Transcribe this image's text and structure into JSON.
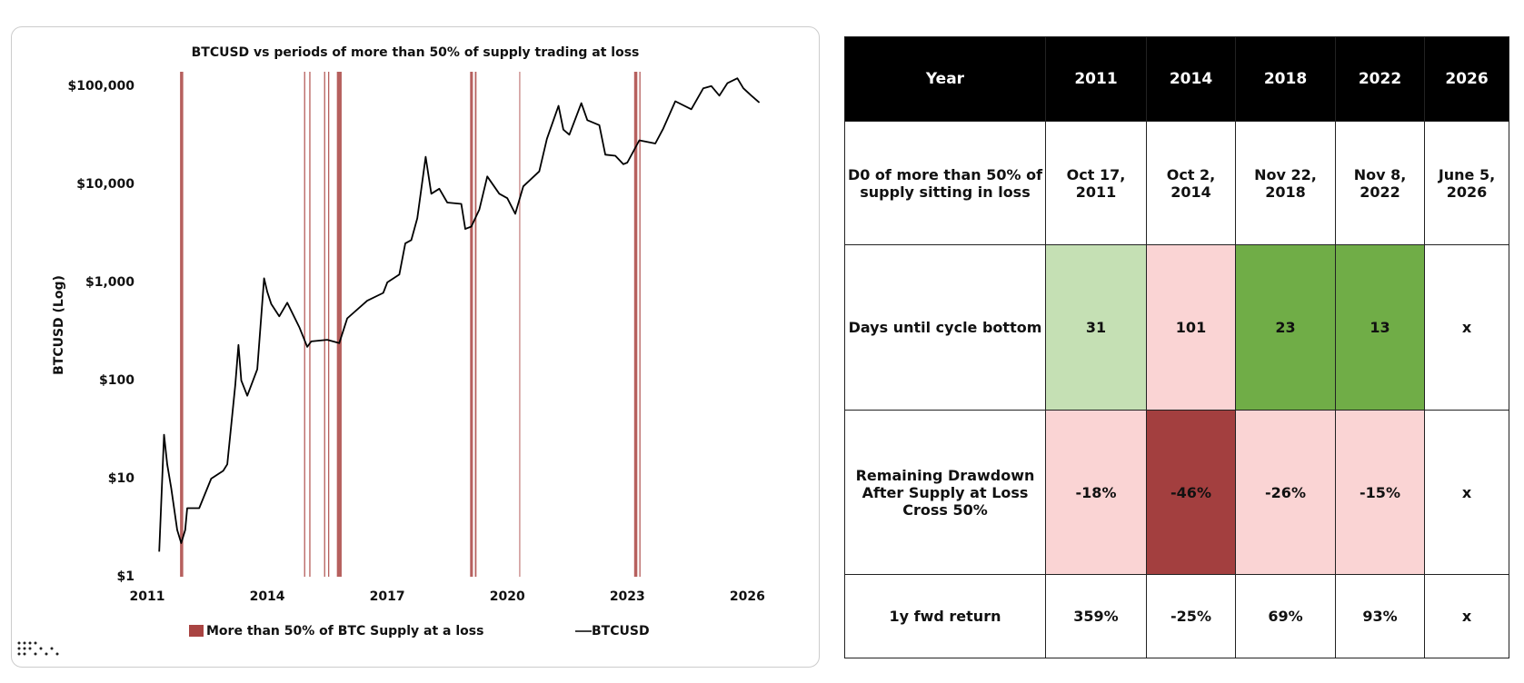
{
  "chart_data": {
    "type": "line",
    "title": "BTCUSD vs periods of more than 50% of supply trading at loss",
    "y_label": "BTCUSD (Log)",
    "yscale": "log",
    "xlim": [
      2011,
      2026.9
    ],
    "ylim": [
      1,
      140000
    ],
    "xticks": [
      2011,
      2014,
      2017,
      2020,
      2023,
      2026
    ],
    "yticks": [
      {
        "value": 1,
        "label": "$1"
      },
      {
        "value": 10,
        "label": "$10"
      },
      {
        "value": 100,
        "label": "$100"
      },
      {
        "value": 1000,
        "label": "$1,000"
      },
      {
        "value": 10000,
        "label": "$10,000"
      },
      {
        "value": 100000,
        "label": "$100,000"
      }
    ],
    "series": [
      {
        "name": "BTCUSD",
        "color": "#000000",
        "x": [
          2011.3,
          2011.42,
          2011.5,
          2011.6,
          2011.75,
          2011.85,
          2011.95,
          2012.0,
          2012.3,
          2012.6,
          2012.9,
          2013.0,
          2013.2,
          2013.28,
          2013.35,
          2013.5,
          2013.75,
          2013.92,
          2014.0,
          2014.1,
          2014.3,
          2014.5,
          2014.8,
          2015.0,
          2015.1,
          2015.5,
          2015.8,
          2016.0,
          2016.5,
          2016.9,
          2017.0,
          2017.3,
          2017.45,
          2017.6,
          2017.75,
          2017.96,
          2018.1,
          2018.3,
          2018.5,
          2018.85,
          2018.95,
          2019.1,
          2019.3,
          2019.5,
          2019.8,
          2020.0,
          2020.2,
          2020.4,
          2020.8,
          2020.99,
          2021.28,
          2021.4,
          2021.55,
          2021.85,
          2022.0,
          2022.3,
          2022.45,
          2022.7,
          2022.9,
          2023.0,
          2023.3,
          2023.7,
          2023.9,
          2024.2,
          2024.6,
          2024.9,
          2025.1,
          2025.3,
          2025.5,
          2025.75,
          2025.9,
          2026.1,
          2026.3
        ],
        "values": [
          1.8,
          28,
          14,
          8,
          3,
          2.2,
          3,
          5,
          5,
          10,
          12,
          14,
          90,
          230,
          100,
          70,
          130,
          1100,
          800,
          600,
          450,
          620,
          350,
          220,
          250,
          260,
          240,
          430,
          650,
          780,
          1000,
          1200,
          2500,
          2700,
          4500,
          19000,
          8000,
          9000,
          6500,
          6300,
          3500,
          3700,
          5500,
          12000,
          8000,
          7200,
          5000,
          9500,
          13500,
          29000,
          63000,
          36000,
          32000,
          67000,
          45000,
          40000,
          20000,
          19500,
          16000,
          16600,
          28000,
          26000,
          37000,
          70000,
          58000,
          95000,
          100000,
          80000,
          107000,
          120000,
          95000,
          80000,
          68000
        ]
      }
    ],
    "bands": {
      "name": "More than 50% of BTC Supply at a loss",
      "color": "#a94442",
      "periods": [
        [
          2011.82,
          2011.9
        ],
        [
          2014.92,
          2014.95
        ],
        [
          2015.05,
          2015.08
        ],
        [
          2015.42,
          2015.45
        ],
        [
          2015.52,
          2015.55
        ],
        [
          2015.74,
          2015.86
        ],
        [
          2019.07,
          2019.14
        ],
        [
          2019.19,
          2019.23
        ],
        [
          2020.3,
          2020.32
        ],
        [
          2023.17,
          2023.25
        ],
        [
          2023.3,
          2023.33
        ]
      ]
    }
  },
  "table": {
    "header": [
      "Year",
      "2011",
      "2014",
      "2018",
      "2022",
      "2026"
    ],
    "rows": [
      [
        "D0 of more than 50% of supply sitting in loss",
        "Oct 17, 2011",
        "Oct 2, 2014",
        "Nov 22, 2018",
        "Nov 8, 2022",
        "June 5, 2026"
      ],
      [
        "Days until cycle bottom",
        "31",
        "101",
        "23",
        "13",
        "x"
      ],
      [
        "Remaining Drawdown After Supply at Loss Cross 50%",
        "-18%",
        "-46%",
        "-26%",
        "-15%",
        "x"
      ],
      [
        "1y fwd return",
        "359%",
        "-25%",
        "69%",
        "93%",
        "x"
      ]
    ]
  }
}
